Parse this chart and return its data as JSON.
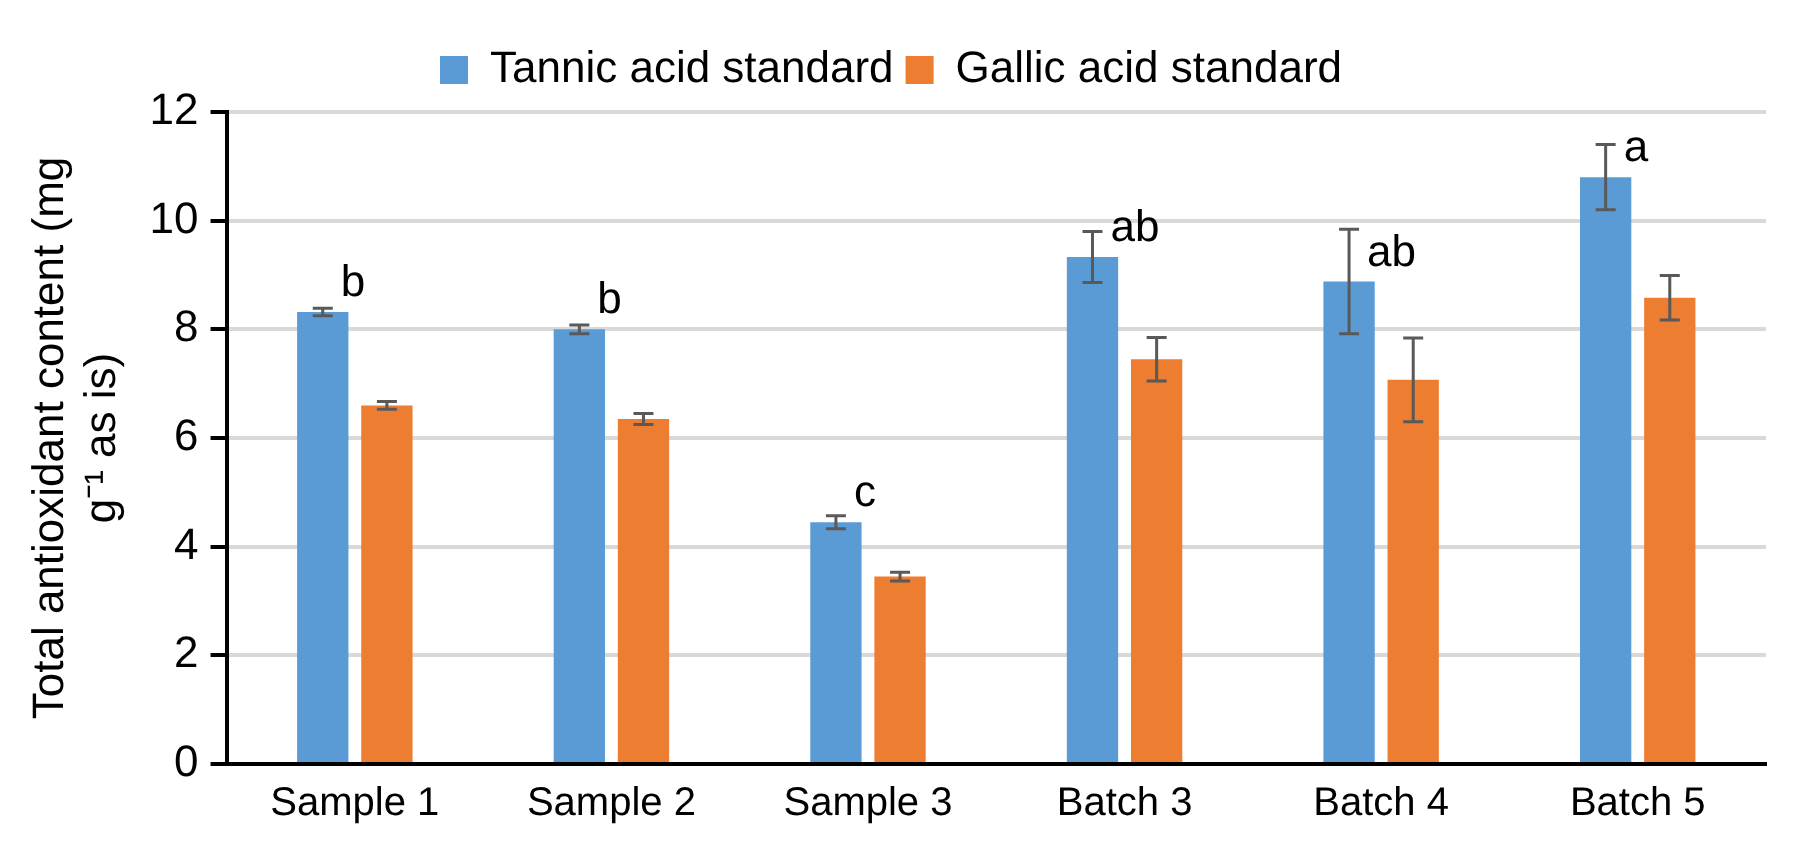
{
  "chart_data": {
    "type": "bar",
    "ylabel": "Total antioxidant content (mg g⁻¹ as is)",
    "categories": [
      "Sample 1",
      "Sample 2",
      "Sample 3",
      "Batch 3",
      "Batch 4",
      "Batch 5"
    ],
    "series": [
      {
        "name": "Tannic acid standard",
        "color": "#5b9bd5",
        "values": [
          8.32,
          8.0,
          4.45,
          9.33,
          8.88,
          10.8
        ],
        "errors": [
          0.07,
          0.08,
          0.12,
          0.47,
          0.96,
          0.6
        ]
      },
      {
        "name": "Gallic acid standard",
        "color": "#ed7d31",
        "values": [
          6.6,
          6.35,
          3.45,
          7.45,
          7.07,
          8.58
        ],
        "errors": [
          0.07,
          0.1,
          0.08,
          0.4,
          0.77,
          0.41
        ]
      }
    ],
    "ylim": [
      0,
      12
    ],
    "yticks": [
      0,
      2,
      4,
      6,
      8,
      10,
      12
    ],
    "grid": "y",
    "legend": "top",
    "annotations": [
      {
        "text": "b",
        "x": "Sample 1",
        "y": 8.32
      },
      {
        "text": "b",
        "x": "Sample 2",
        "y": 8.0
      },
      {
        "text": "c",
        "x": "Sample 3",
        "y": 4.45
      },
      {
        "text": "ab",
        "x": "Batch 3",
        "y": 9.33
      },
      {
        "text": "ab",
        "x": "Batch 4",
        "y": 8.88
      },
      {
        "text": "a",
        "x": "Batch 5",
        "y": 10.8
      }
    ]
  }
}
